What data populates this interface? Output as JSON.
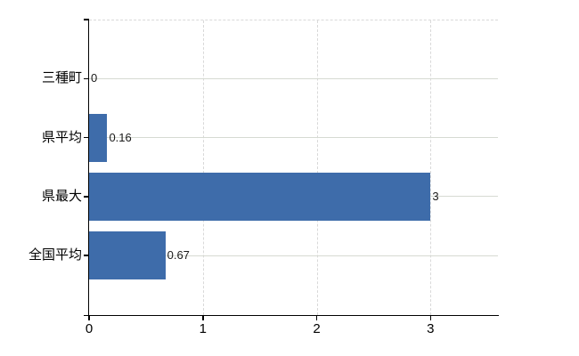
{
  "chart_data": {
    "type": "bar",
    "orientation": "horizontal",
    "categories": [
      "三種町",
      "県平均",
      "県最大",
      "全国平均"
    ],
    "values": [
      0,
      0.16,
      3,
      0.67
    ],
    "value_labels": [
      "0",
      "0.16",
      "3",
      "0.67"
    ],
    "x_ticks": [
      0,
      1,
      2,
      3
    ],
    "x_tick_labels": [
      "0",
      "1",
      "2",
      "3"
    ],
    "xlim": [
      0,
      3.6
    ],
    "grid": true,
    "legend": false,
    "colors": {
      "bar": "#3e6caa",
      "hgrid": "#d6dad2",
      "vgrid": "#d9d9d9",
      "axis": "#000000",
      "text": "#000000"
    }
  }
}
